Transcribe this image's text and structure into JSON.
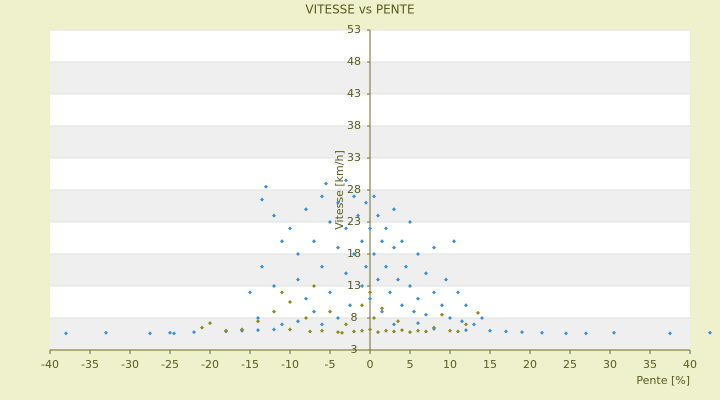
{
  "chart_data": {
    "type": "scatter",
    "title": "VITESSE vs PENTE",
    "x_label": "Pente [%]",
    "y_label": "Vitesse [km/h]",
    "xlim": [
      -40,
      40
    ],
    "xticks": [
      -40,
      -35,
      -30,
      -25,
      -20,
      -15,
      -10,
      -5,
      0,
      5,
      10,
      15,
      20,
      25,
      30,
      35,
      40
    ],
    "ylim": [
      3,
      53
    ],
    "yticks": [
      3,
      8,
      13,
      18,
      23,
      28,
      33,
      38,
      43,
      48,
      53
    ],
    "grid": true,
    "series": [
      {
        "color": "#3a8fd8",
        "x": [
          -38,
          -33,
          -27.5,
          -25,
          -24.5,
          -22,
          -18,
          -16,
          -14,
          -12,
          8,
          12,
          15,
          17,
          19,
          21.5,
          24.5,
          27,
          30.5,
          37.5,
          42.5,
          -13,
          -13.5,
          -12,
          -11,
          -13.5,
          -12,
          -10,
          -9,
          -9,
          -8,
          -8,
          -7,
          -7,
          -6,
          -6,
          -5.5,
          -5,
          -5,
          -4,
          -4,
          -4,
          -3,
          -3,
          -3,
          -2.5,
          -2,
          -2,
          -1.5,
          -1,
          -1,
          -0.5,
          -0.5,
          0,
          0,
          0.5,
          0.5,
          1,
          1,
          1.5,
          1.5,
          2,
          2,
          2.5,
          3,
          3,
          3.5,
          4,
          4,
          4.5,
          5,
          5,
          5.5,
          6,
          6,
          7,
          7,
          8,
          8,
          9,
          9.5,
          10,
          10.5,
          11,
          11.5,
          12,
          13,
          14,
          -15,
          -14,
          -11,
          -9,
          -6,
          3,
          6
        ],
        "y": [
          5.6,
          5.7,
          5.6,
          5.7,
          5.6,
          5.8,
          5.9,
          6,
          6.1,
          6.2,
          6.3,
          6.1,
          6,
          5.9,
          5.8,
          5.7,
          5.6,
          5.6,
          5.7,
          5.6,
          5.7,
          28.5,
          26.5,
          24,
          20,
          16,
          13,
          22,
          18,
          14,
          25,
          11,
          20,
          9,
          27,
          16,
          29,
          23,
          12,
          26,
          19,
          8,
          29.5,
          22,
          15,
          10,
          27,
          18,
          24,
          20,
          13,
          26,
          16,
          22,
          11,
          27,
          18,
          24,
          14,
          20,
          9,
          22,
          16,
          12,
          25,
          19,
          14,
          20,
          10,
          16,
          23,
          13,
          9,
          18,
          11,
          15,
          8.5,
          19,
          12,
          10,
          14,
          8,
          20,
          12,
          7.5,
          10,
          7,
          8,
          12,
          8,
          7,
          7.5,
          7,
          7,
          7.2
        ]
      },
      {
        "color": "#8a8a1a",
        "x": [
          -21,
          -20,
          -18,
          -16,
          -14,
          -12,
          -11,
          -10,
          -10,
          -8,
          -7,
          -6,
          -5,
          -4,
          -3,
          -2,
          -1,
          -1,
          0,
          0,
          0.5,
          1,
          1.5,
          2,
          3,
          3.5,
          4,
          5,
          6,
          7,
          8,
          9,
          10,
          11,
          12,
          13.5,
          -3.5,
          -7.5
        ],
        "y": [
          6.5,
          7.2,
          6,
          6.2,
          7.5,
          9,
          12,
          10.5,
          6.2,
          8,
          13,
          6,
          9,
          5.8,
          7,
          5.9,
          10,
          6,
          6.2,
          12,
          8,
          5.8,
          9.5,
          6,
          5.9,
          7.5,
          6.1,
          5.8,
          6,
          5.9,
          6.5,
          8.5,
          6,
          5.9,
          7,
          8.8,
          5.7,
          5.9
        ]
      }
    ]
  }
}
